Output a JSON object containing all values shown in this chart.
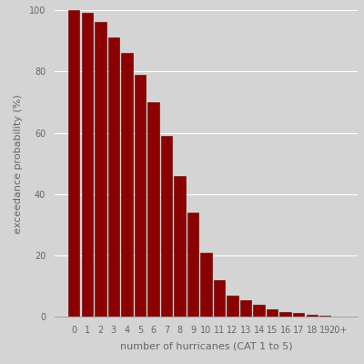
{
  "categories": [
    "0",
    "1",
    "2",
    "3",
    "4",
    "5",
    "6",
    "7",
    "8",
    "9",
    "10",
    "11",
    "12",
    "13",
    "14",
    "15",
    "16",
    "17",
    "18",
    "19",
    "20+"
  ],
  "values": [
    100,
    99,
    96,
    91,
    86,
    79,
    70,
    59,
    46,
    34,
    21,
    12,
    7,
    5.5,
    4,
    2.5,
    1.5,
    1.2,
    0.7,
    0.4,
    0.2
  ],
  "bar_color": "#8B0000",
  "bar_edge_color": "#5a0000",
  "background_color": "#d4d4d4",
  "xlabel": "number of hurricanes (CAT 1 to 5)",
  "ylabel": "exceedance probability (%)",
  "ylim": [
    0,
    100
  ],
  "yticks": [
    0,
    20,
    40,
    60,
    80,
    100
  ],
  "grid_color": "#ffffff",
  "label_fontsize": 8,
  "tick_fontsize": 7,
  "text_color": "#666666"
}
